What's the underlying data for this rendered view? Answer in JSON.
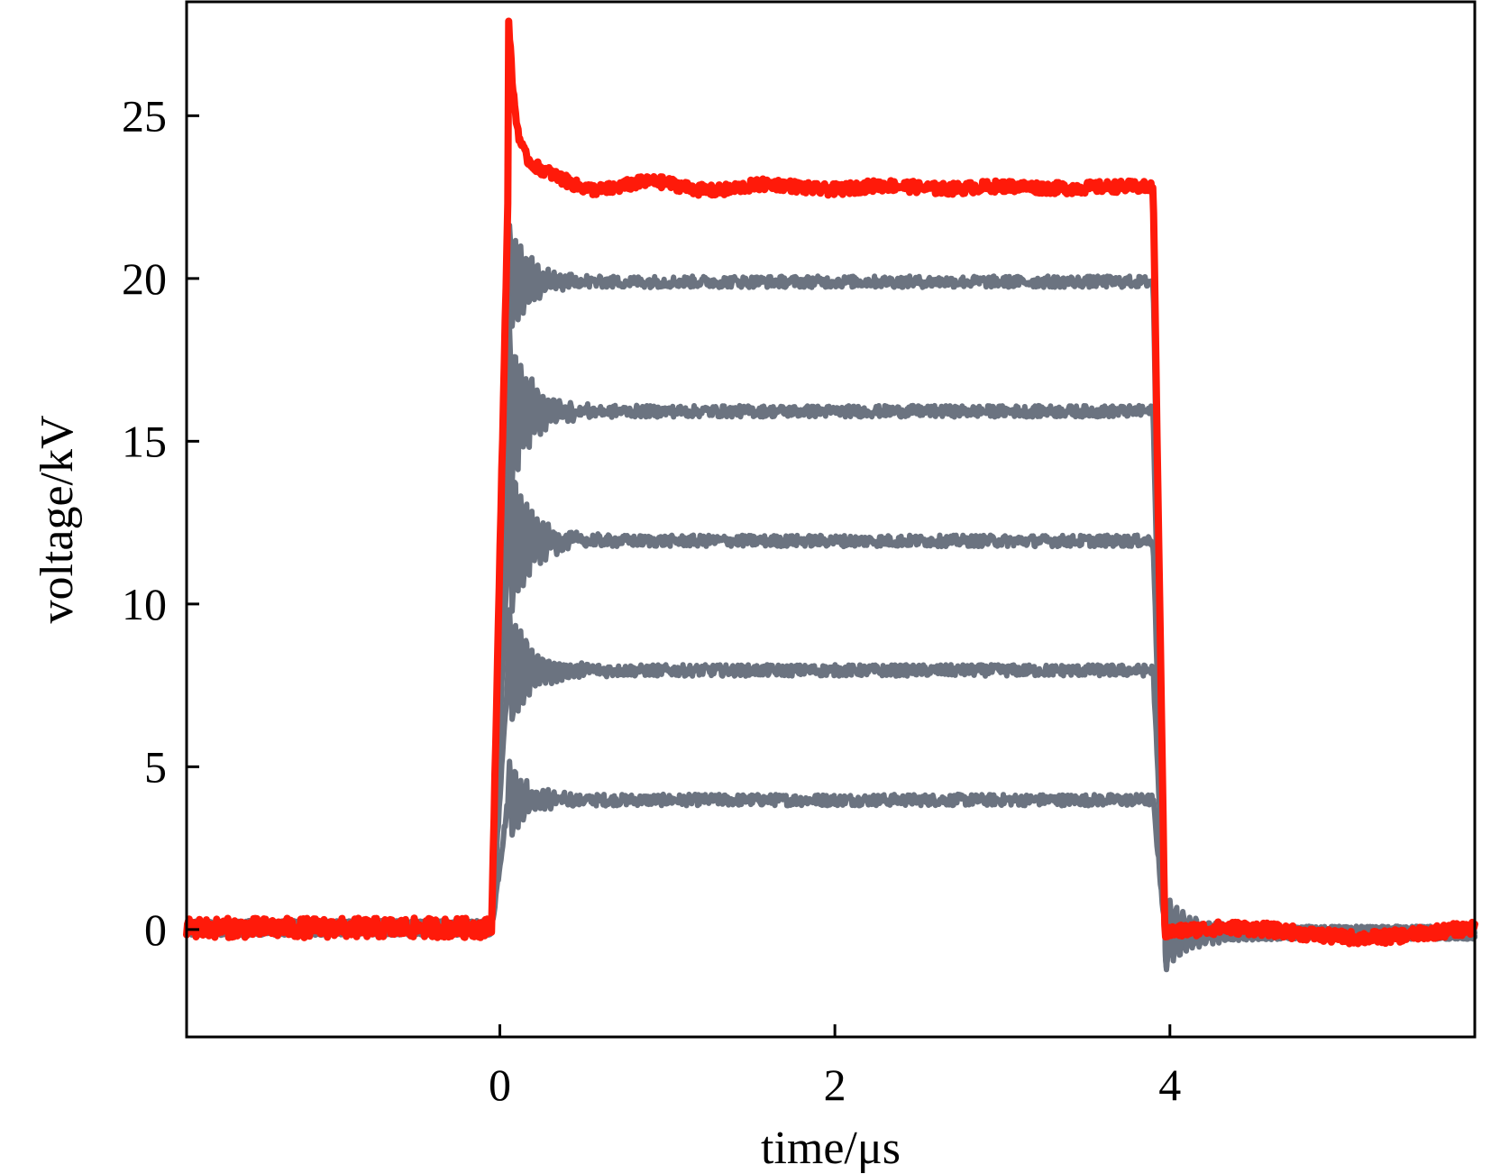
{
  "chart_data": {
    "type": "line",
    "xlabel": "time/μs",
    "ylabel": "voltage/kV",
    "xlim": [
      -1.87,
      5.82
    ],
    "ylim": [
      -3.3,
      28.5
    ],
    "xticks": [
      0,
      2,
      4
    ],
    "yticks": [
      0,
      5,
      10,
      15,
      20,
      25
    ],
    "grid": false,
    "legend": "none",
    "colors": {
      "highlight": "#ff1a0a",
      "gray": "#6b7380"
    },
    "series": [
      {
        "color": "#6b7380",
        "amplitude": 4.0,
        "ring": 1.2
      },
      {
        "color": "#6b7380",
        "amplitude": 8.0,
        "ring": 2.0
      },
      {
        "color": "#6b7380",
        "amplitude": 12.0,
        "ring": 2.6
      },
      {
        "color": "#6b7380",
        "amplitude": 16.0,
        "ring": 2.6
      },
      {
        "color": "#6b7380",
        "amplitude": 20.0,
        "ring": 1.8
      },
      {
        "color": "#ff1a0a",
        "amplitude": 22.8,
        "peak": 27.7
      }
    ]
  }
}
